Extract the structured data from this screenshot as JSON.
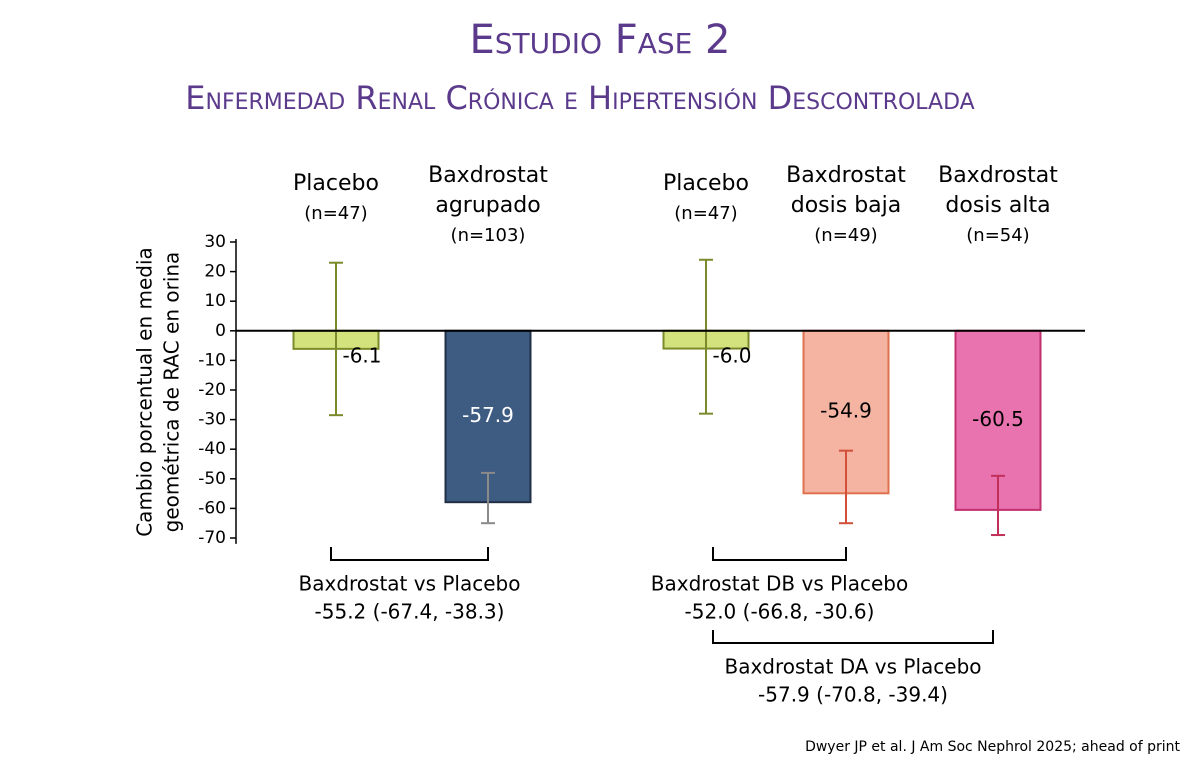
{
  "chart_data": {
    "type": "bar",
    "title": "Estudio Fase 2",
    "subtitle": "Enfermedad Renal Crónica e Hipertensión Descontrolada",
    "y_label": [
      "Cambio porcentual en media",
      "geométrica de RAC en orina"
    ],
    "categories": [
      [
        "Placebo"
      ],
      [
        "Baxdrostat",
        "agrupado"
      ],
      [
        "Placebo"
      ],
      [
        "Baxdrostat",
        "dosis baja"
      ],
      [
        "Baxdrostat",
        "dosis alta"
      ]
    ],
    "n_labels": [
      "(n=47)",
      "(n=103)",
      "(n=47)",
      "(n=49)",
      "(n=54)"
    ],
    "values": [
      -6.1,
      -57.9,
      -6.0,
      -54.9,
      -60.5
    ],
    "value_labels": [
      "-6.1",
      "-57.9",
      "-6.0",
      "-54.9",
      "-60.5"
    ],
    "value_label_colors": [
      "#000000",
      "#ffffff",
      "#000000",
      "#000000",
      "#000000"
    ],
    "error_low": [
      -28.5,
      -65,
      -28,
      -65,
      -69
    ],
    "error_high": [
      23,
      -48,
      24,
      -40.5,
      -49
    ],
    "colors": [
      "#d3e27c",
      "#3e5b82",
      "#d3e27c",
      "#f4b4a1",
      "#e873af"
    ],
    "border_colors": [
      "#7b8b2c",
      "#1f2f45",
      "#7b8b2c",
      "#e0714f",
      "#c2306f"
    ],
    "error_colors": [
      "#7b8b2c",
      "#8a8a8a",
      "#7b8b2c",
      "#d2503a",
      "#c2305a"
    ],
    "ylim": [
      -72,
      31
    ],
    "yticks": [
      30,
      20,
      10,
      0,
      -10,
      -20,
      -30,
      -40,
      -50,
      -60,
      -70
    ],
    "comparisons": [
      {
        "label": "Baxdrostat vs Placebo",
        "result": "-55.2 (-67.4, -38.3)"
      },
      {
        "label": "Baxdrostat DB vs Placebo",
        "result": "-52.0 (-66.8, -30.6)"
      },
      {
        "label": "Baxdrostat DA vs Placebo",
        "result": "-57.9 (-70.8, -39.4)"
      }
    ],
    "source": "Dwyer JP et al. J Am Soc Nephrol 2025; ahead of print"
  }
}
